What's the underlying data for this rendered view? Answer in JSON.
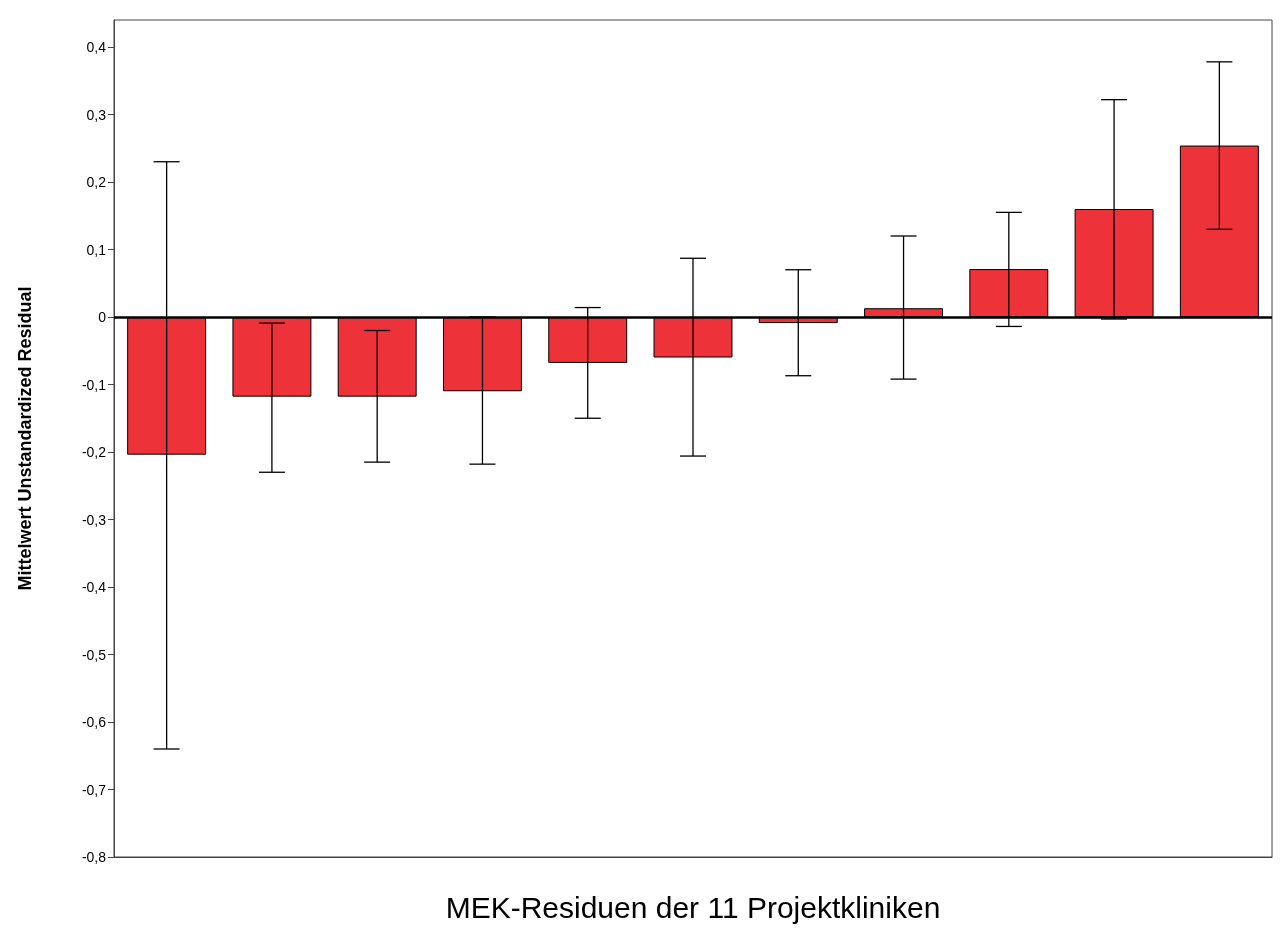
{
  "chart_data": {
    "type": "bar",
    "xlabel": "MEK-Residuen der 11 Projektkliniken",
    "ylabel": "Mittelwert Unstandardized Residual",
    "categories": [
      null,
      null,
      null,
      null,
      null,
      null,
      null,
      null,
      null,
      null,
      null
    ],
    "values": [
      -0.204,
      -0.118,
      -0.118,
      -0.11,
      -0.068,
      -0.06,
      -0.009,
      0.013,
      0.071,
      0.16,
      0.254
    ],
    "errors": [
      [
        -0.64,
        0.23
      ],
      [
        -0.23,
        -0.009
      ],
      [
        -0.215,
        -0.02
      ],
      [
        -0.218,
        0.0
      ],
      [
        -0.15,
        0.014
      ],
      [
        -0.206,
        0.087
      ],
      [
        -0.087,
        0.07
      ],
      [
        -0.092,
        0.12
      ],
      [
        -0.014,
        0.155
      ],
      [
        -0.003,
        0.322
      ],
      [
        0.13,
        0.378
      ]
    ],
    "color": "#ee3239",
    "ylim": [
      -0.8,
      0.44
    ],
    "yticks": [
      {
        "value": -0.8,
        "label": "-0,8"
      },
      {
        "value": -0.7,
        "label": "-0,7"
      },
      {
        "value": -0.6,
        "label": "-0,6"
      },
      {
        "value": -0.5,
        "label": "-0,5"
      },
      {
        "value": -0.4,
        "label": "-0,4"
      },
      {
        "value": -0.3,
        "label": "-0,3"
      },
      {
        "value": -0.2,
        "label": "-0,2"
      },
      {
        "value": -0.1,
        "label": "-0,1"
      },
      {
        "value": 0,
        "label": "0"
      },
      {
        "value": 0.1,
        "label": "0,1"
      },
      {
        "value": 0.2,
        "label": "0,2"
      },
      {
        "value": 0.3,
        "label": "0,3"
      },
      {
        "value": 0.4,
        "label": "0,4"
      }
    ],
    "ref_lines": [
      {
        "axis": "y",
        "value": 0,
        "color": "#000000"
      }
    ],
    "grid": false
  }
}
